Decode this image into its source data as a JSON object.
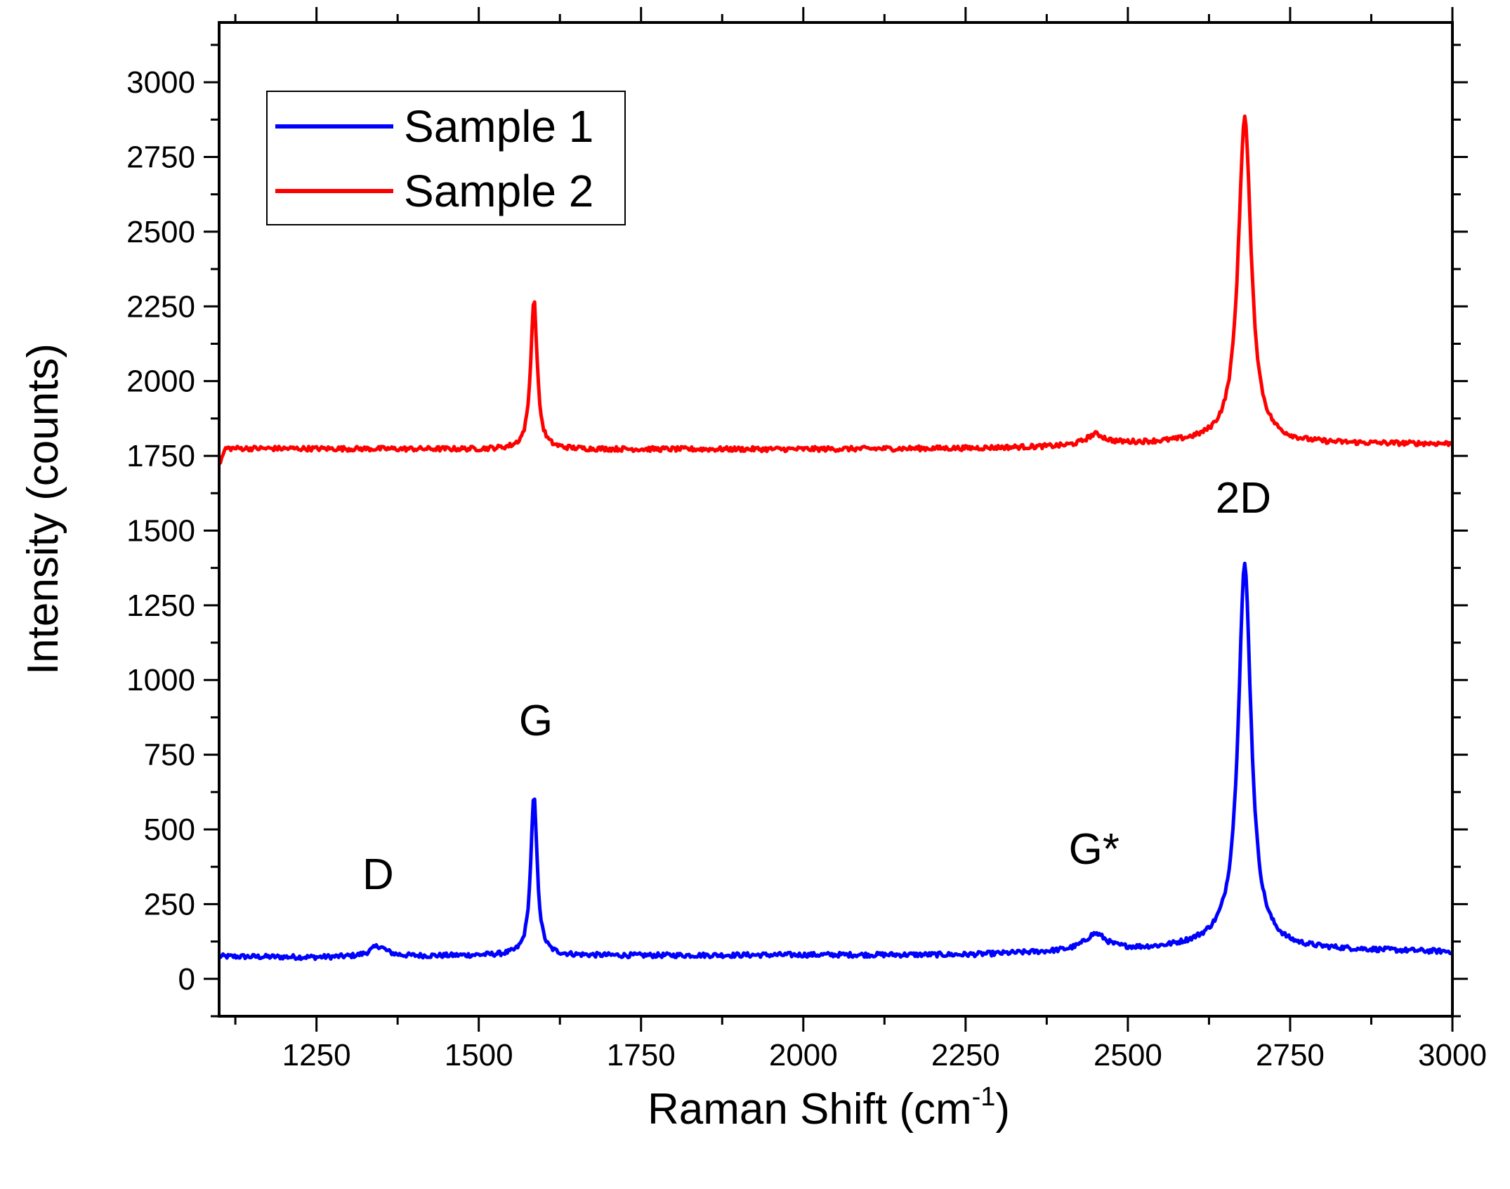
{
  "chart_data": {
    "type": "line",
    "title": "",
    "xlabel_main": "Raman Shift (cm",
    "xlabel_sup": "-1",
    "xlabel_close": ")",
    "ylabel": "Intensity (counts)",
    "xlim": [
      1100,
      3000
    ],
    "ylim": [
      -125,
      3200
    ],
    "x_ticks": [
      1250,
      1500,
      1750,
      2000,
      2250,
      2500,
      2750,
      3000
    ],
    "y_ticks": [
      0,
      250,
      500,
      750,
      1000,
      1250,
      1500,
      1750,
      2000,
      2250,
      2500,
      2750,
      3000
    ],
    "legend_position": "top-left",
    "series": [
      {
        "name": "Sample 1",
        "color": "#0000ff",
        "baseline_points": [
          [
            1100,
            75
          ],
          [
            1250,
            72
          ],
          [
            1500,
            78
          ],
          [
            1750,
            78
          ],
          [
            2000,
            80
          ],
          [
            2250,
            80
          ],
          [
            2400,
            90
          ],
          [
            2550,
            100
          ],
          [
            2650,
            120
          ],
          [
            2750,
            100
          ],
          [
            3000,
            90
          ]
        ],
        "peaks": [
          {
            "center": 1345,
            "height": 35,
            "width": 30
          },
          {
            "center": 1585,
            "height": 530,
            "width": 12
          },
          {
            "center": 2450,
            "height": 55,
            "width": 40
          },
          {
            "center": 2680,
            "height": 1270,
            "width": 24
          }
        ]
      },
      {
        "name": "Sample 2",
        "color": "#ff0000",
        "baseline_points": [
          [
            1100,
            1720
          ],
          [
            1110,
            1775
          ],
          [
            1500,
            1772
          ],
          [
            1750,
            1772
          ],
          [
            2000,
            1772
          ],
          [
            2250,
            1775
          ],
          [
            2400,
            1780
          ],
          [
            2500,
            1790
          ],
          [
            2640,
            1795
          ],
          [
            2750,
            1790
          ],
          [
            3000,
            1790
          ]
        ],
        "peaks": [
          {
            "center": 1585,
            "height": 500,
            "width": 12
          },
          {
            "center": 2450,
            "height": 35,
            "width": 35
          },
          {
            "center": 2680,
            "height": 1090,
            "width": 24
          }
        ]
      }
    ],
    "annotations": [
      {
        "text": "D",
        "x": 1345,
        "y": 300
      },
      {
        "text": "G",
        "x": 1588,
        "y": 815
      },
      {
        "text": "G*",
        "x": 2448,
        "y": 385
      },
      {
        "text": "2D",
        "x": 2678,
        "y": 1560
      }
    ]
  }
}
